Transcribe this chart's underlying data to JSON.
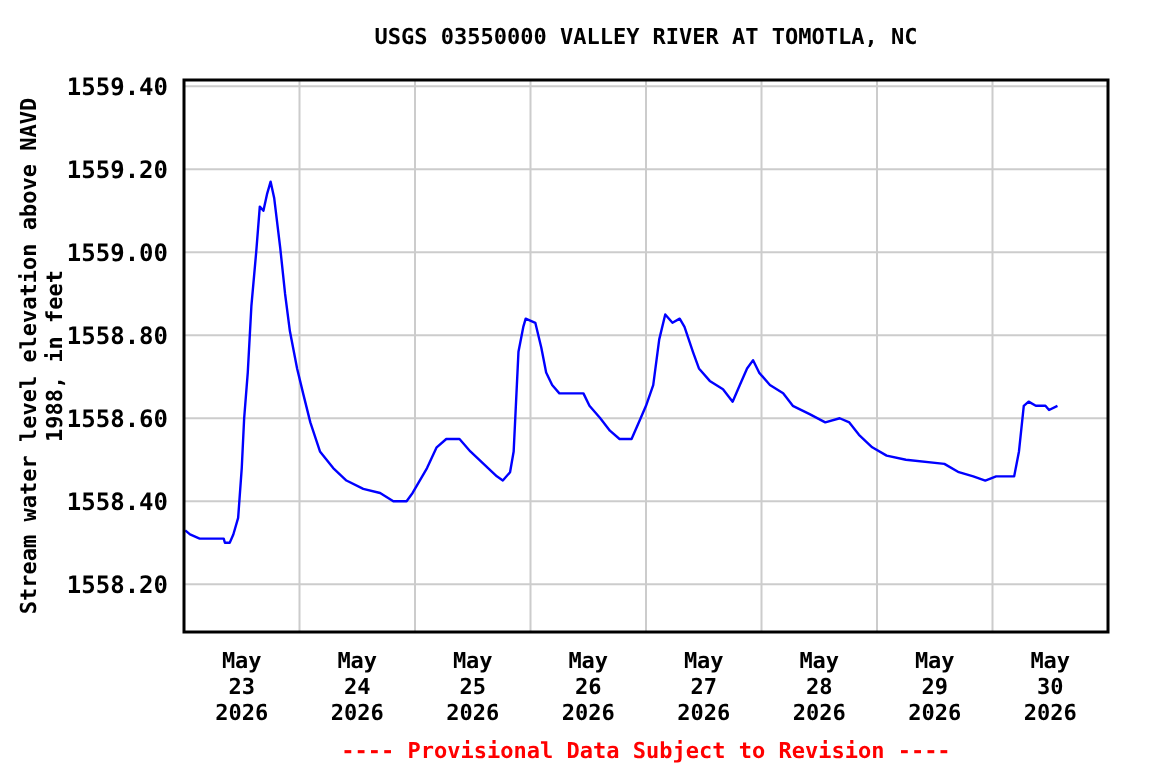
{
  "chart_data": {
    "type": "line",
    "title": "USGS 03550000 VALLEY RIVER AT TOMOTLA, NC",
    "ylabel": "Stream water level elevation above NAVD\n1988, in feet",
    "annotations": [
      "---- Provisional Data Subject to Revision ----"
    ],
    "xlim": [
      "2026-05-23T00:00",
      "2026-05-31T00:00"
    ],
    "xticks": [
      {
        "value": "2026-05-23T12:00",
        "label": "May\n23\n2026"
      },
      {
        "value": "2026-05-24T12:00",
        "label": "May\n24\n2026"
      },
      {
        "value": "2026-05-25T12:00",
        "label": "May\n25\n2026"
      },
      {
        "value": "2026-05-26T12:00",
        "label": "May\n26\n2026"
      },
      {
        "value": "2026-05-27T12:00",
        "label": "May\n27\n2026"
      },
      {
        "value": "2026-05-28T12:00",
        "label": "May\n28\n2026"
      },
      {
        "value": "2026-05-29T12:00",
        "label": "May\n29\n2026"
      },
      {
        "value": "2026-05-30T12:00",
        "label": "May\n30\n2026"
      },
      {
        "value": "2026-05-24T00:00",
        "label": null
      },
      {
        "value": "2026-05-25T00:00",
        "label": null
      },
      {
        "value": "2026-05-26T00:00",
        "label": null
      },
      {
        "value": "2026-05-27T00:00",
        "label": null
      },
      {
        "value": "2026-05-28T00:00",
        "label": null
      },
      {
        "value": "2026-05-29T00:00",
        "label": null
      },
      {
        "value": "2026-05-30T00:00",
        "label": null
      }
    ],
    "ylim": [
      1558.085,
      1559.415
    ],
    "yticks": [
      {
        "value": 1558.2,
        "label": "1558.20"
      },
      {
        "value": 1558.4,
        "label": "1558.40"
      },
      {
        "value": 1558.6,
        "label": "1558.60"
      },
      {
        "value": 1558.8,
        "label": "1558.80"
      },
      {
        "value": 1559.0,
        "label": "1559.00"
      },
      {
        "value": 1559.2,
        "label": "1559.20"
      },
      {
        "value": 1559.4,
        "label": "1559.40"
      }
    ],
    "grid": true,
    "marker": "none",
    "line_style": "solid",
    "series": [
      {
        "color": "#0000ff",
        "x": [
          "2026-05-23T00:15",
          "2026-05-23T01:15",
          "2026-05-23T03:15",
          "2026-05-23T08:15",
          "2026-05-23T08:30",
          "2026-05-23T09:30",
          "2026-05-23T10:15",
          "2026-05-23T11:15",
          "2026-05-23T12:00",
          "2026-05-23T12:30",
          "2026-05-23T13:15",
          "2026-05-23T14:00",
          "2026-05-23T15:00",
          "2026-05-23T15:45",
          "2026-05-23T16:30",
          "2026-05-23T17:15",
          "2026-05-23T18:00",
          "2026-05-23T18:45",
          "2026-05-23T20:00",
          "2026-05-23T21:00",
          "2026-05-23T22:00",
          "2026-05-23T23:30",
          "2026-05-24T00:45",
          "2026-05-24T02:15",
          "2026-05-24T04:15",
          "2026-05-24T07:00",
          "2026-05-24T09:45",
          "2026-05-24T13:15",
          "2026-05-24T16:45",
          "2026-05-24T19:30",
          "2026-05-24T22:15",
          "2026-05-24T23:30",
          "2026-05-25T02:30",
          "2026-05-25T04:30",
          "2026-05-25T06:30",
          "2026-05-25T09:15",
          "2026-05-25T11:30",
          "2026-05-25T14:15",
          "2026-05-25T17:00",
          "2026-05-25T18:15",
          "2026-05-25T19:45",
          "2026-05-25T20:30",
          "2026-05-25T21:30",
          "2026-05-25T22:30",
          "2026-05-25T23:00",
          "2026-05-26T01:00",
          "2026-05-26T02:15",
          "2026-05-26T03:15",
          "2026-05-26T04:30",
          "2026-05-26T06:00",
          "2026-05-26T11:00",
          "2026-05-26T12:15",
          "2026-05-26T14:30",
          "2026-05-26T16:30",
          "2026-05-26T18:30",
          "2026-05-26T21:00",
          "2026-05-26T22:30",
          "2026-05-27T00:00",
          "2026-05-27T01:30",
          "2026-05-27T02:45",
          "2026-05-27T04:00",
          "2026-05-27T05:30",
          "2026-05-27T07:00",
          "2026-05-27T08:00",
          "2026-05-27T09:45",
          "2026-05-27T11:00",
          "2026-05-27T13:15",
          "2026-05-27T16:00",
          "2026-05-27T18:00",
          "2026-05-27T19:30",
          "2026-05-27T21:00",
          "2026-05-27T22:15",
          "2026-05-27T23:30",
          "2026-05-28T01:45",
          "2026-05-28T04:30",
          "2026-05-28T06:30",
          "2026-05-28T10:00",
          "2026-05-28T13:15",
          "2026-05-28T16:15",
          "2026-05-28T18:15",
          "2026-05-28T20:15",
          "2026-05-28T23:00",
          "2026-05-29T02:00",
          "2026-05-29T06:00",
          "2026-05-29T14:00",
          "2026-05-29T17:00",
          "2026-05-29T20:00",
          "2026-05-29T22:30",
          "2026-05-30T00:45",
          "2026-05-30T04:30",
          "2026-05-30T05:30",
          "2026-05-30T06:30",
          "2026-05-30T07:30",
          "2026-05-30T09:00",
          "2026-05-30T11:00",
          "2026-05-30T11:45",
          "2026-05-30T13:30"
        ],
        "values": [
          1558.33,
          1558.32,
          1558.31,
          1558.31,
          1558.3,
          1558.3,
          1558.32,
          1558.36,
          1558.48,
          1558.6,
          1558.71,
          1558.87,
          1559.0,
          1559.11,
          1559.1,
          1559.14,
          1559.17,
          1559.13,
          1559.01,
          1558.9,
          1558.81,
          1558.72,
          1558.66,
          1558.59,
          1558.52,
          1558.48,
          1558.45,
          1558.43,
          1558.42,
          1558.4,
          1558.4,
          1558.42,
          1558.48,
          1558.53,
          1558.55,
          1558.55,
          1558.52,
          1558.49,
          1558.46,
          1558.45,
          1558.47,
          1558.52,
          1558.76,
          1558.82,
          1558.84,
          1558.83,
          1558.77,
          1558.71,
          1558.68,
          1558.66,
          1558.66,
          1558.63,
          1558.6,
          1558.57,
          1558.55,
          1558.55,
          1558.59,
          1558.63,
          1558.68,
          1558.79,
          1558.85,
          1558.83,
          1558.84,
          1558.82,
          1558.76,
          1558.72,
          1558.69,
          1558.67,
          1558.64,
          1558.68,
          1558.72,
          1558.74,
          1558.71,
          1558.68,
          1558.66,
          1558.63,
          1558.61,
          1558.59,
          1558.6,
          1558.59,
          1558.56,
          1558.53,
          1558.51,
          1558.5,
          1558.49,
          1558.47,
          1558.46,
          1558.45,
          1558.46,
          1558.46,
          1558.52,
          1558.63,
          1558.64,
          1558.63,
          1558.63,
          1558.62,
          1558.63
        ]
      }
    ]
  }
}
